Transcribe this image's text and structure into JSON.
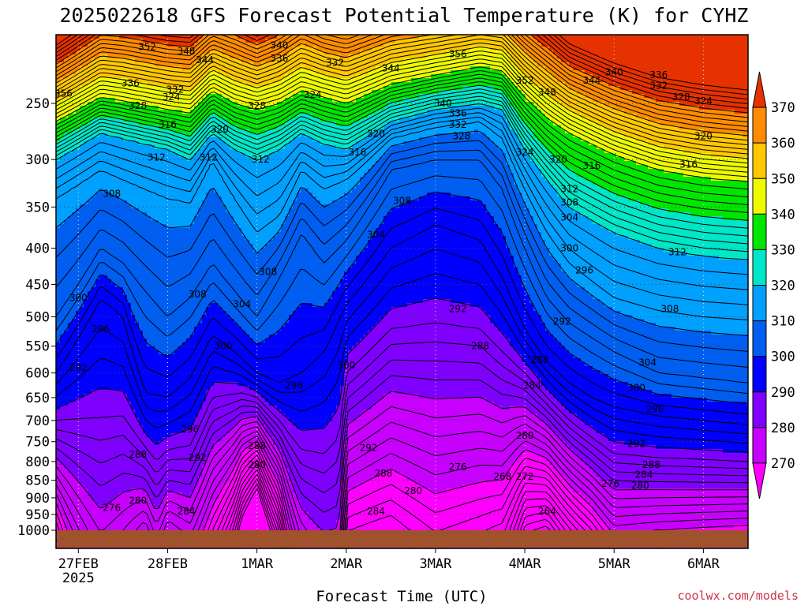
{
  "chart_data": {
    "type": "heatmap",
    "title": "2025022618 GFS Forecast Potential Temperature (K) for CYHZ",
    "xlabel": "Forecast Time (UTC)",
    "ylabel": "",
    "x_ticks": [
      "27FEB",
      "28FEB",
      "1MAR",
      "2MAR",
      "3MAR",
      "4MAR",
      "5MAR",
      "6MAR"
    ],
    "x_year": "2025",
    "y_ticks": [
      250,
      300,
      350,
      400,
      450,
      500,
      550,
      600,
      650,
      700,
      750,
      800,
      850,
      900,
      950,
      1000
    ],
    "y_axis_log": true,
    "ylim": [
      1000,
      200
    ],
    "xlim_hours": [
      -6,
      180
    ],
    "grid": "dotted",
    "colorbar": {
      "levels": [
        270,
        280,
        290,
        300,
        310,
        320,
        330,
        340,
        350,
        360,
        370
      ],
      "colors": [
        "#ff00ff",
        "#c800ff",
        "#7f00ff",
        "#0000ff",
        "#005ff0",
        "#00a0ff",
        "#00e6c8",
        "#00e600",
        "#eefa00",
        "#ffc800",
        "#ff8c00",
        "#e63200"
      ],
      "extend": "both"
    },
    "series": [
      {
        "name": "288",
        "x": [
          -6,
          12,
          21,
          24,
          30,
          36,
          44,
          48,
          54,
          60,
          66,
          70,
          72,
          84,
          96,
          108,
          114,
          120,
          126,
          132,
          138,
          144,
          156,
          168,
          180
        ],
        "y": [
          700,
          690,
          800,
          770,
          760,
          650,
          640,
          650,
          700,
          770,
          780,
          740,
          600,
          520,
          510,
          520,
          560,
          600,
          650,
          700,
          740,
          780,
          790,
          795,
          800
        ]
      },
      {
        "name": "296",
        "x": [
          -6,
          6,
          12,
          18,
          24,
          30,
          36,
          42,
          48,
          54,
          60,
          66,
          72,
          84,
          96,
          108,
          114,
          120,
          126,
          132,
          138,
          144,
          156,
          168,
          180
        ],
        "y": [
          600,
          470,
          500,
          640,
          650,
          610,
          530,
          560,
          600,
          620,
          600,
          560,
          480,
          400,
          370,
          390,
          440,
          520,
          580,
          620,
          650,
          670,
          690,
          700,
          710
        ]
      },
      {
        "name": "304",
        "x": [
          -6,
          6,
          12,
          24,
          30,
          36,
          42,
          48,
          54,
          60,
          66,
          72,
          84,
          96,
          108,
          114,
          120,
          126,
          132,
          144,
          156,
          168,
          180
        ],
        "y": [
          500,
          400,
          420,
          500,
          470,
          420,
          460,
          500,
          440,
          380,
          420,
          390,
          310,
          300,
          300,
          330,
          400,
          470,
          510,
          560,
          600,
          610,
          620
        ]
      },
      {
        "name": "312",
        "x": [
          -6,
          6,
          12,
          24,
          30,
          36,
          42,
          48,
          54,
          60,
          66,
          72,
          84,
          96,
          108,
          114,
          120,
          126,
          132,
          144,
          156,
          168,
          180
        ],
        "y": [
          340,
          310,
          320,
          340,
          345,
          300,
          340,
          380,
          360,
          310,
          330,
          320,
          280,
          270,
          265,
          280,
          330,
          380,
          420,
          470,
          490,
          500,
          505
        ]
      },
      {
        "name": "320",
        "x": [
          -6,
          6,
          12,
          24,
          30,
          36,
          42,
          48,
          54,
          60,
          66,
          72,
          84,
          96,
          108,
          114,
          120,
          126,
          132,
          144,
          156,
          168,
          180
        ],
        "y": [
          300,
          275,
          280,
          290,
          300,
          275,
          290,
          300,
          290,
          275,
          285,
          290,
          265,
          255,
          250,
          255,
          290,
          320,
          350,
          380,
          400,
          410,
          415
        ]
      },
      {
        "name": "340",
        "x": [
          -6,
          6,
          12,
          24,
          30,
          36,
          42,
          48,
          54,
          60,
          66,
          72,
          84,
          96,
          108,
          114,
          120,
          126,
          132,
          144,
          156,
          168,
          180
        ],
        "y": [
          265,
          245,
          248,
          255,
          258,
          240,
          250,
          255,
          250,
          240,
          245,
          250,
          235,
          228,
          222,
          225,
          245,
          262,
          275,
          295,
          310,
          318,
          322
        ]
      },
      {
        "name": "356",
        "x": [
          -6,
          6,
          12,
          24,
          30,
          36,
          42,
          48,
          54,
          60,
          66,
          72,
          84,
          96,
          108,
          114,
          120,
          126,
          132,
          144,
          156,
          168,
          180
        ],
        "y": [
          240,
          220,
          222,
          228,
          230,
          215,
          222,
          228,
          222,
          212,
          218,
          222,
          210,
          205,
          200,
          202,
          218,
          232,
          245,
          262,
          275,
          282,
          286
        ]
      }
    ],
    "contour_labels": [
      {
        "text": "352",
        "t": 18.5,
        "p": 208
      },
      {
        "text": "348",
        "t": 29,
        "p": 211
      },
      {
        "text": "344",
        "t": 34,
        "p": 217
      },
      {
        "text": "340",
        "t": 54,
        "p": 207
      },
      {
        "text": "336",
        "t": 54,
        "p": 216
      },
      {
        "text": "332",
        "t": 69,
        "p": 219
      },
      {
        "text": "344",
        "t": 84,
        "p": 223
      },
      {
        "text": "356",
        "t": 102,
        "p": 213
      },
      {
        "text": "352",
        "t": 120,
        "p": 232
      },
      {
        "text": "348",
        "t": 126,
        "p": 241
      },
      {
        "text": "344",
        "t": 138,
        "p": 232
      },
      {
        "text": "340",
        "t": 144,
        "p": 226
      },
      {
        "text": "336",
        "t": 156,
        "p": 228
      },
      {
        "text": "332",
        "t": 156,
        "p": 236
      },
      {
        "text": "328",
        "t": 162,
        "p": 245
      },
      {
        "text": "324",
        "t": 168,
        "p": 248
      },
      {
        "text": "356",
        "t": -4,
        "p": 242
      },
      {
        "text": "336",
        "t": 14,
        "p": 234
      },
      {
        "text": "332",
        "t": 26,
        "p": 239
      },
      {
        "text": "324",
        "t": 25,
        "p": 245
      },
      {
        "text": "328",
        "t": 16,
        "p": 252
      },
      {
        "text": "316",
        "t": 24,
        "p": 268
      },
      {
        "text": "320",
        "t": 38,
        "p": 272
      },
      {
        "text": "328",
        "t": 48,
        "p": 252
      },
      {
        "text": "324",
        "t": 63,
        "p": 243
      },
      {
        "text": "340",
        "t": 98,
        "p": 250
      },
      {
        "text": "336",
        "t": 102,
        "p": 258
      },
      {
        "text": "332",
        "t": 102,
        "p": 268
      },
      {
        "text": "328",
        "t": 103,
        "p": 278
      },
      {
        "text": "320",
        "t": 80,
        "p": 276
      },
      {
        "text": "316",
        "t": 75,
        "p": 293
      },
      {
        "text": "324",
        "t": 120,
        "p": 293
      },
      {
        "text": "320",
        "t": 129,
        "p": 300
      },
      {
        "text": "316",
        "t": 138,
        "p": 306
      },
      {
        "text": "320",
        "t": 168,
        "p": 278
      },
      {
        "text": "316",
        "t": 164,
        "p": 305
      },
      {
        "text": "312",
        "t": 21,
        "p": 298
      },
      {
        "text": "312",
        "t": 35,
        "p": 298
      },
      {
        "text": "312",
        "t": 49,
        "p": 300
      },
      {
        "text": "308",
        "t": 9,
        "p": 335
      },
      {
        "text": "308",
        "t": 87,
        "p": 343
      },
      {
        "text": "312",
        "t": 132,
        "p": 330
      },
      {
        "text": "308",
        "t": 132,
        "p": 345
      },
      {
        "text": "304",
        "t": 132,
        "p": 362
      },
      {
        "text": "304",
        "t": 80,
        "p": 383
      },
      {
        "text": "300",
        "t": 132,
        "p": 400
      },
      {
        "text": "296",
        "t": 136,
        "p": 430
      },
      {
        "text": "312",
        "t": 161,
        "p": 405
      },
      {
        "text": "308",
        "t": 51,
        "p": 432
      },
      {
        "text": "308",
        "t": 32,
        "p": 465
      },
      {
        "text": "304",
        "t": 44,
        "p": 480
      },
      {
        "text": "308",
        "t": 159,
        "p": 487
      },
      {
        "text": "300",
        "t": 0,
        "p": 470
      },
      {
        "text": "296",
        "t": 6,
        "p": 520
      },
      {
        "text": "292",
        "t": 0,
        "p": 590
      },
      {
        "text": "300",
        "t": 39,
        "p": 550
      },
      {
        "text": "300",
        "t": 72,
        "p": 585
      },
      {
        "text": "296",
        "t": 58,
        "p": 625
      },
      {
        "text": "292",
        "t": 102,
        "p": 487
      },
      {
        "text": "292",
        "t": 130,
        "p": 508
      },
      {
        "text": "288",
        "t": 108,
        "p": 550
      },
      {
        "text": "288",
        "t": 124,
        "p": 575
      },
      {
        "text": "284",
        "t": 122,
        "p": 625
      },
      {
        "text": "304",
        "t": 153,
        "p": 580
      },
      {
        "text": "300",
        "t": 150,
        "p": 630
      },
      {
        "text": "296",
        "t": 155,
        "p": 675
      },
      {
        "text": "292",
        "t": 150,
        "p": 755
      },
      {
        "text": "296",
        "t": 30,
        "p": 720
      },
      {
        "text": "292",
        "t": 32,
        "p": 790
      },
      {
        "text": "288",
        "t": 16,
        "p": 782
      },
      {
        "text": "288",
        "t": 48,
        "p": 760
      },
      {
        "text": "292",
        "t": 78,
        "p": 765
      },
      {
        "text": "288",
        "t": 82,
        "p": 832
      },
      {
        "text": "280",
        "t": 120,
        "p": 735
      },
      {
        "text": "276",
        "t": 102,
        "p": 815
      },
      {
        "text": "268",
        "t": 114,
        "p": 840
      },
      {
        "text": "272",
        "t": 120,
        "p": 840
      },
      {
        "text": "288",
        "t": 154,
        "p": 808
      },
      {
        "text": "284",
        "t": 152,
        "p": 835
      },
      {
        "text": "280",
        "t": 151,
        "p": 865
      },
      {
        "text": "276",
        "t": 143,
        "p": 860
      },
      {
        "text": "280",
        "t": 48,
        "p": 808
      },
      {
        "text": "280",
        "t": 90,
        "p": 880
      },
      {
        "text": "280",
        "t": 16,
        "p": 908
      },
      {
        "text": "276",
        "t": 9,
        "p": 930
      },
      {
        "text": "284",
        "t": 29,
        "p": 940
      },
      {
        "text": "284",
        "t": 80,
        "p": 940
      },
      {
        "text": "264",
        "t": 126,
        "p": 940
      }
    ]
  },
  "credit": "coolwx.com/models",
  "colors": {
    "ground": "#a0522d",
    "credit": "#cc3344"
  }
}
